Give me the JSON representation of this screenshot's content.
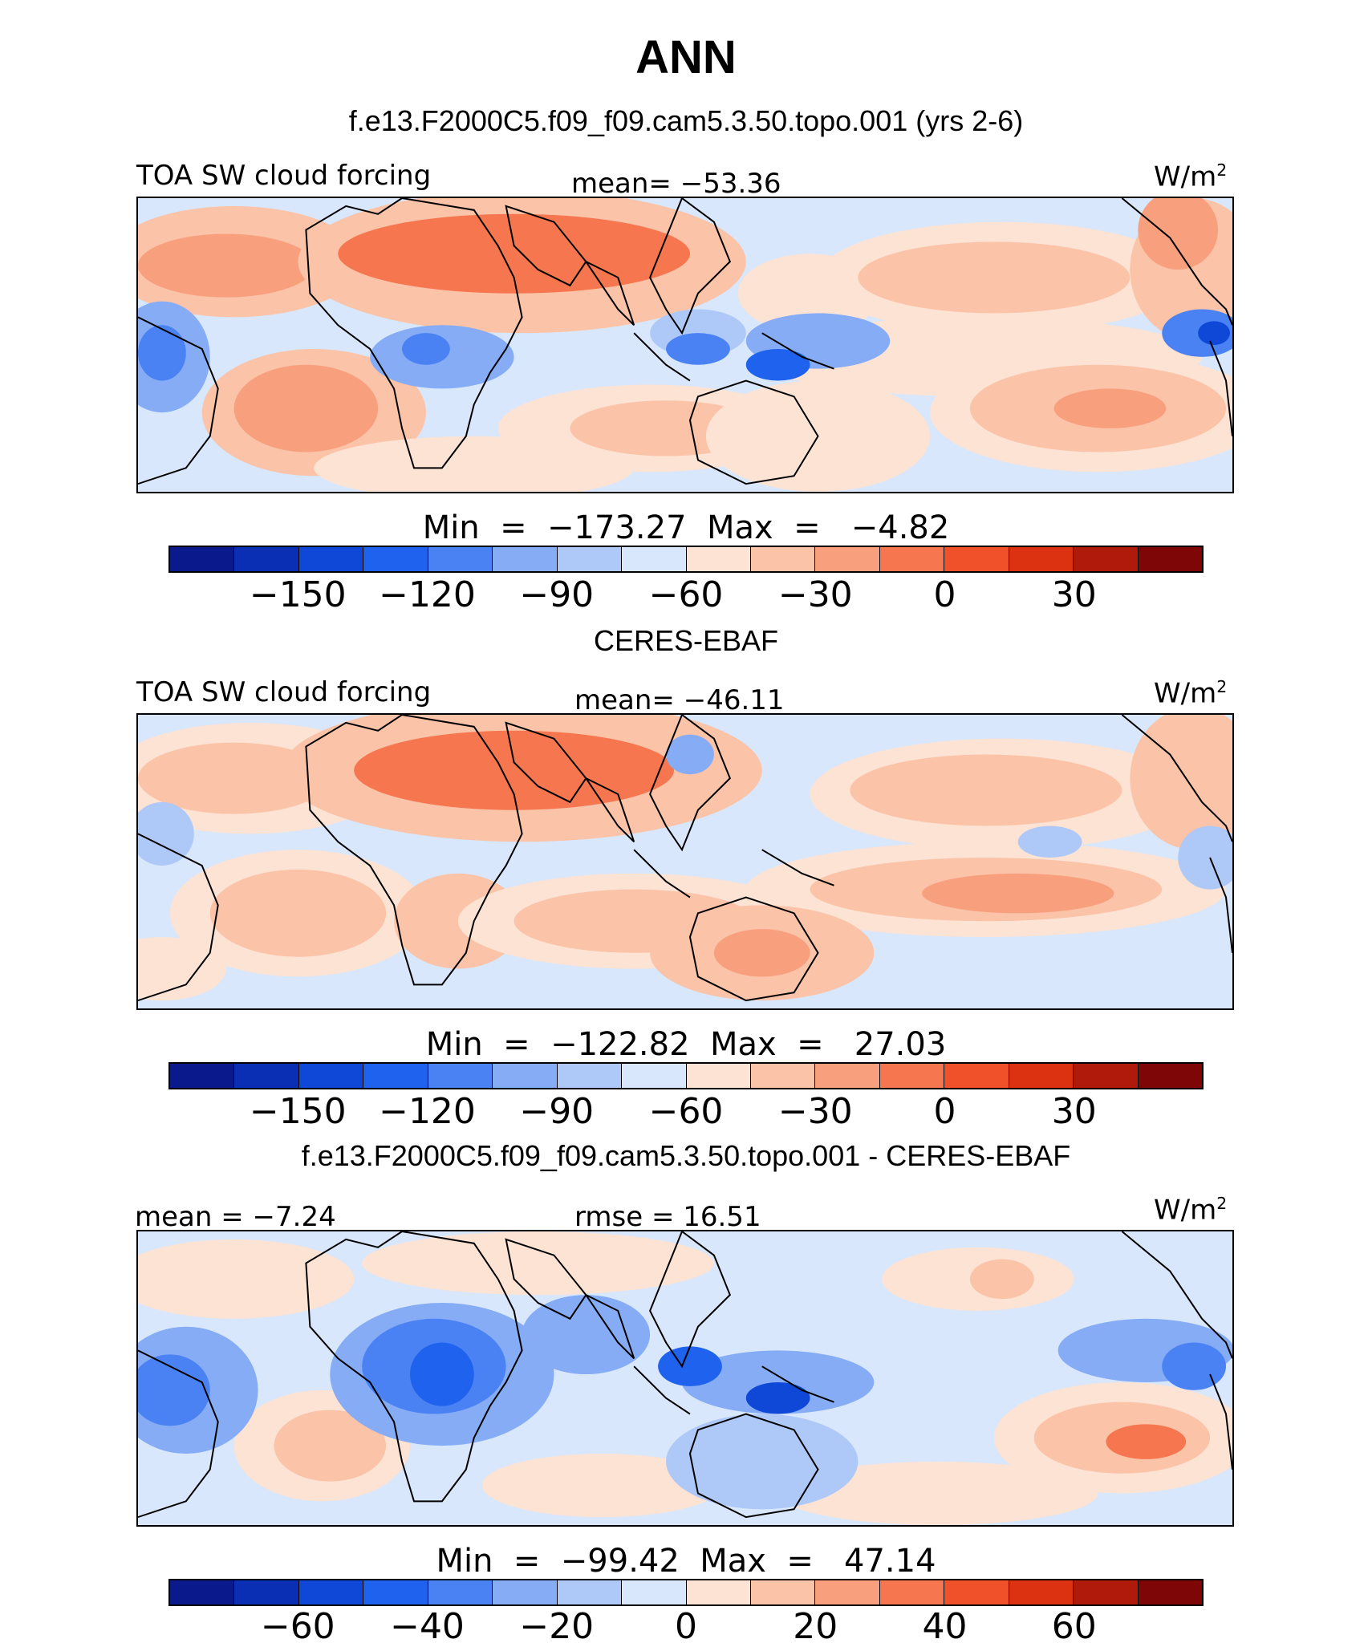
{
  "header": {
    "title": "ANN",
    "subtitle": "f.e13.F2000C5.f09_f09.cam5.3.50.topo.001 (yrs 2-6)"
  },
  "panels": [
    {
      "id": "model",
      "title": "",
      "left_label": "TOA SW cloud forcing",
      "center_label": "mean= −53.36",
      "units": "W/m",
      "units_sup": "2",
      "minmax": "Min  =  −173.27  Max  =   −4.82",
      "colorbar_ticks": [
        "−150",
        "−120",
        "−90",
        "−60",
        "−30",
        "0",
        "30"
      ]
    },
    {
      "id": "obs",
      "title": "CERES-EBAF",
      "left_label": "TOA SW cloud forcing",
      "center_label": "mean= −46.11",
      "units": "W/m",
      "units_sup": "2",
      "minmax": "Min  =  −122.82  Max  =   27.03",
      "colorbar_ticks": [
        "−150",
        "−120",
        "−90",
        "−60",
        "−30",
        "0",
        "30"
      ]
    },
    {
      "id": "diff",
      "title": "f.e13.F2000C5.f09_f09.cam5.3.50.topo.001 - CERES-EBAF",
      "left_label": "mean =  −7.24",
      "center_label": "rmse =   16.51",
      "units": "W/m",
      "units_sup": "2",
      "minmax": "Min  =  −99.42  Max  =   47.14",
      "colorbar_ticks": [
        "−60",
        "−40",
        "−20",
        "0",
        "20",
        "40",
        "60"
      ]
    }
  ],
  "colorbar_colors": [
    "#0a1a8c",
    "#0a2fb4",
    "#0f48d6",
    "#1f62ee",
    "#4a82f4",
    "#86acf6",
    "#aec8f8",
    "#d8e7fb",
    "#fde3d4",
    "#fbc3a8",
    "#f89f7e",
    "#f5764f",
    "#f0502a",
    "#dc3212",
    "#b01a0a",
    "#7e0606"
  ]
}
